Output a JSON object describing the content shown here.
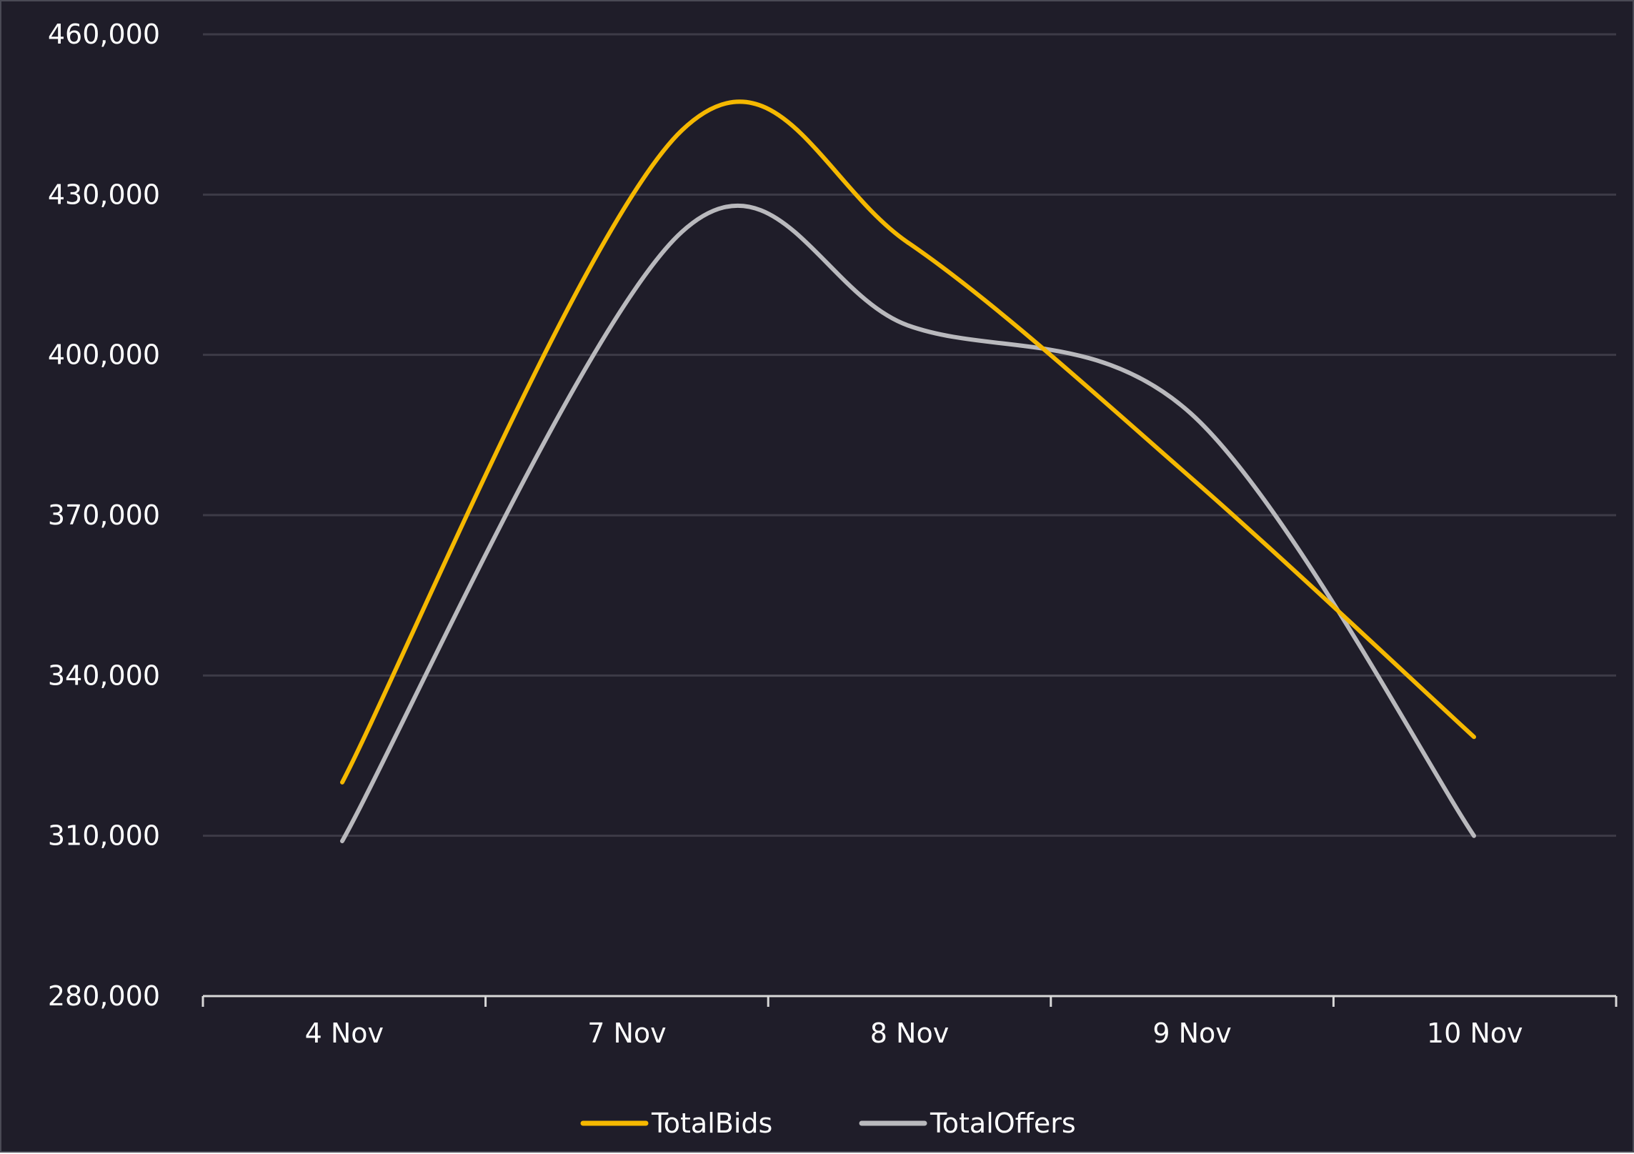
{
  "chart_data": {
    "type": "line",
    "smooth": true,
    "categories": [
      "4 Nov",
      "7 Nov",
      "8 Nov",
      "9 Nov",
      "10 Nov"
    ],
    "x": [
      0,
      1.2,
      2,
      3,
      4
    ],
    "series": [
      {
        "name": "TotalBids",
        "color": "#f5b800",
        "points": [
          {
            "x": 0,
            "y": 320000
          },
          {
            "x": 1.2,
            "y": 442000
          },
          {
            "x": 2,
            "y": 421000
          },
          {
            "x": 3,
            "y": 377000
          },
          {
            "x": 4,
            "y": 328500
          }
        ]
      },
      {
        "name": "TotalOffers",
        "color": "#b9b9bd",
        "points": [
          {
            "x": 0,
            "y": 309000
          },
          {
            "x": 1.2,
            "y": 423000
          },
          {
            "x": 2,
            "y": 405500
          },
          {
            "x": 3,
            "y": 389000
          },
          {
            "x": 4,
            "y": 310000
          }
        ]
      }
    ],
    "yticks": [
      "280,000",
      "310,000",
      "340,000",
      "370,000",
      "400,000",
      "430,000",
      "460,000"
    ],
    "ytick_values": [
      280000,
      310000,
      340000,
      370000,
      400000,
      430000,
      460000
    ],
    "ylim": [
      280000,
      460000
    ],
    "grid": true,
    "legend_position": "bottom-center",
    "background": "#1f1d29"
  }
}
